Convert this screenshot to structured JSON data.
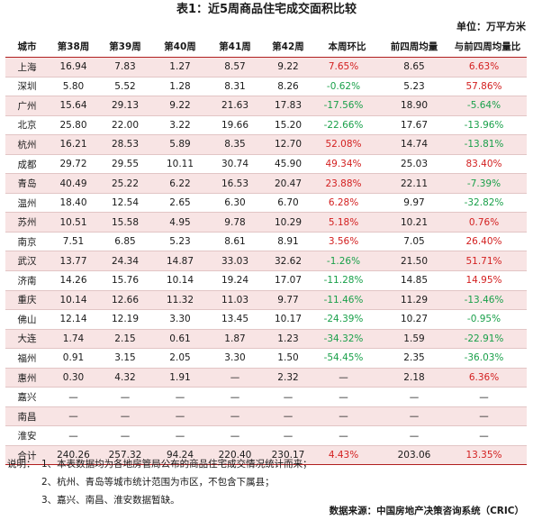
{
  "title": "表1：近5周商品住宅成交面积比较",
  "unit": "单位：万平方米",
  "headers": [
    "城市",
    "第38周",
    "第39周",
    "第40周",
    "第41周",
    "第42周",
    "本周环比",
    "前四周均量",
    "与前四周均量比"
  ],
  "rows": [
    {
      "city": "上海",
      "w38": "16.94",
      "w39": "7.83",
      "w40": "1.27",
      "w41": "8.57",
      "w42": "9.22",
      "wow": "7.65%",
      "avg4": "8.65",
      "vs_avg": "6.63%"
    },
    {
      "city": "深圳",
      "w38": "5.80",
      "w39": "5.52",
      "w40": "1.28",
      "w41": "8.31",
      "w42": "8.26",
      "wow": "-0.62%",
      "avg4": "5.23",
      "vs_avg": "57.86%"
    },
    {
      "city": "广州",
      "w38": "15.64",
      "w39": "29.13",
      "w40": "9.22",
      "w41": "21.63",
      "w42": "17.83",
      "wow": "-17.56%",
      "avg4": "18.90",
      "vs_avg": "-5.64%"
    },
    {
      "city": "北京",
      "w38": "25.80",
      "w39": "22.00",
      "w40": "3.22",
      "w41": "19.66",
      "w42": "15.20",
      "wow": "-22.66%",
      "avg4": "17.67",
      "vs_avg": "-13.96%"
    },
    {
      "city": "杭州",
      "w38": "16.21",
      "w39": "28.53",
      "w40": "5.89",
      "w41": "8.35",
      "w42": "12.70",
      "wow": "52.08%",
      "avg4": "14.74",
      "vs_avg": "-13.81%"
    },
    {
      "city": "成都",
      "w38": "29.72",
      "w39": "29.55",
      "w40": "10.11",
      "w41": "30.74",
      "w42": "45.90",
      "wow": "49.34%",
      "avg4": "25.03",
      "vs_avg": "83.40%"
    },
    {
      "city": "青岛",
      "w38": "40.49",
      "w39": "25.22",
      "w40": "6.22",
      "w41": "16.53",
      "w42": "20.47",
      "wow": "23.88%",
      "avg4": "22.11",
      "vs_avg": "-7.39%"
    },
    {
      "city": "温州",
      "w38": "18.40",
      "w39": "12.54",
      "w40": "2.65",
      "w41": "6.30",
      "w42": "6.70",
      "wow": "6.28%",
      "avg4": "9.97",
      "vs_avg": "-32.82%"
    },
    {
      "city": "苏州",
      "w38": "10.51",
      "w39": "15.58",
      "w40": "4.95",
      "w41": "9.78",
      "w42": "10.29",
      "wow": "5.18%",
      "avg4": "10.21",
      "vs_avg": "0.76%"
    },
    {
      "city": "南京",
      "w38": "7.51",
      "w39": "6.85",
      "w40": "5.23",
      "w41": "8.61",
      "w42": "8.91",
      "wow": "3.56%",
      "avg4": "7.05",
      "vs_avg": "26.40%"
    },
    {
      "city": "武汉",
      "w38": "13.77",
      "w39": "24.34",
      "w40": "14.87",
      "w41": "33.03",
      "w42": "32.62",
      "wow": "-1.26%",
      "avg4": "21.50",
      "vs_avg": "51.71%"
    },
    {
      "city": "济南",
      "w38": "14.26",
      "w39": "15.76",
      "w40": "10.14",
      "w41": "19.24",
      "w42": "17.07",
      "wow": "-11.28%",
      "avg4": "14.85",
      "vs_avg": "14.95%"
    },
    {
      "city": "重庆",
      "w38": "10.14",
      "w39": "12.66",
      "w40": "11.32",
      "w41": "11.03",
      "w42": "9.77",
      "wow": "-11.46%",
      "avg4": "11.29",
      "vs_avg": "-13.46%"
    },
    {
      "city": "佛山",
      "w38": "12.14",
      "w39": "12.19",
      "w40": "3.30",
      "w41": "13.45",
      "w42": "10.17",
      "wow": "-24.39%",
      "avg4": "10.27",
      "vs_avg": "-0.95%"
    },
    {
      "city": "大连",
      "w38": "1.74",
      "w39": "2.15",
      "w40": "0.61",
      "w41": "1.87",
      "w42": "1.23",
      "wow": "-34.32%",
      "avg4": "1.59",
      "vs_avg": "-22.91%"
    },
    {
      "city": "福州",
      "w38": "0.91",
      "w39": "3.15",
      "w40": "2.05",
      "w41": "3.30",
      "w42": "1.50",
      "wow": "-54.45%",
      "avg4": "2.35",
      "vs_avg": "-36.03%"
    },
    {
      "city": "惠州",
      "w38": "0.30",
      "w39": "4.32",
      "w40": "1.91",
      "w41": "—",
      "w42": "2.32",
      "wow": "—",
      "avg4": "2.18",
      "vs_avg": "6.36%"
    },
    {
      "city": "嘉兴",
      "w38": "—",
      "w39": "—",
      "w40": "—",
      "w41": "—",
      "w42": "—",
      "wow": "—",
      "avg4": "—",
      "vs_avg": "—"
    },
    {
      "city": "南昌",
      "w38": "—",
      "w39": "—",
      "w40": "—",
      "w41": "—",
      "w42": "—",
      "wow": "—",
      "avg4": "—",
      "vs_avg": "—"
    },
    {
      "city": "淮安",
      "w38": "—",
      "w39": "—",
      "w40": "—",
      "w41": "—",
      "w42": "—",
      "wow": "—",
      "avg4": "—",
      "vs_avg": "—"
    }
  ],
  "total": {
    "city": "合计",
    "w38": "240.26",
    "w39": "257.32",
    "w40": "94.24",
    "w41": "220.40",
    "w42": "230.17",
    "wow": "4.43%",
    "avg4": "203.06",
    "vs_avg": "13.35%"
  },
  "notes": {
    "label": "说明：",
    "items": [
      "1、本表数据均为各地房管局公布的商品住宅成交情况统计而来；",
      "2、杭州、青岛等城市统计范围为市区，不包含下属县；",
      "3、嘉兴、南昌、淮安数据暂缺。"
    ]
  },
  "source": "数据来源：中国房地产决策咨询系统（CRIC）",
  "colors": {
    "accent_line": "#b01f1f",
    "row_shade": "#f8e4e4",
    "positive": "#d32020",
    "negative": "#1aa04a"
  }
}
